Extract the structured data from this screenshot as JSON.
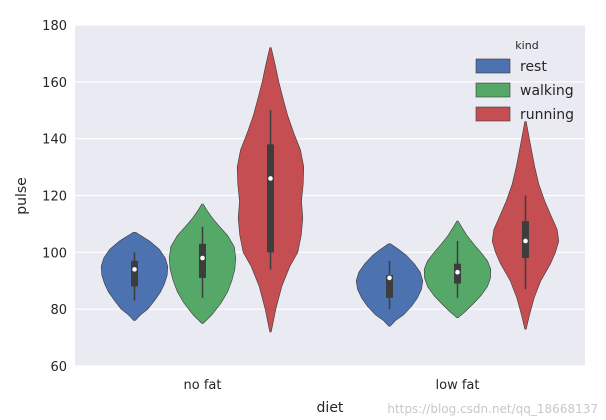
{
  "chart_data": {
    "type": "violin",
    "xlabel": "diet",
    "ylabel": "pulse",
    "ylim": [
      60,
      180
    ],
    "yticks": [
      60,
      80,
      100,
      120,
      140,
      160,
      180
    ],
    "categories": [
      "no fat",
      "low fat"
    ],
    "grid": true,
    "legend": {
      "title": "kind",
      "placement": "top-right"
    },
    "series": [
      {
        "name": "rest",
        "color": "#4c72b0",
        "groups": [
          {
            "category": "no fat",
            "min": 76,
            "max": 107,
            "q1": 88,
            "median": 94,
            "q3": 97,
            "whisker_low": 83,
            "whisker_high": 100,
            "density": [
              [
                76,
                0.02
              ],
              [
                78,
                0.18
              ],
              [
                80,
                0.4
              ],
              [
                83,
                0.6
              ],
              [
                86,
                0.78
              ],
              [
                89,
                0.9
              ],
              [
                92,
                0.98
              ],
              [
                95,
                1.0
              ],
              [
                98,
                0.92
              ],
              [
                101,
                0.75
              ],
              [
                104,
                0.45
              ],
              [
                107,
                0.04
              ]
            ]
          },
          {
            "category": "low fat",
            "min": 74,
            "max": 103,
            "q1": 84,
            "median": 91,
            "q3": 92,
            "whisker_low": 80,
            "whisker_high": 97,
            "density": [
              [
                74,
                0.02
              ],
              [
                76,
                0.18
              ],
              [
                78,
                0.42
              ],
              [
                81,
                0.66
              ],
              [
                84,
                0.84
              ],
              [
                87,
                0.96
              ],
              [
                90,
                1.0
              ],
              [
                93,
                0.92
              ],
              [
                96,
                0.74
              ],
              [
                99,
                0.5
              ],
              [
                101,
                0.28
              ],
              [
                103,
                0.03
              ]
            ]
          }
        ]
      },
      {
        "name": "walking",
        "color": "#55a868",
        "groups": [
          {
            "category": "no fat",
            "min": 75,
            "max": 117,
            "q1": 91,
            "median": 98,
            "q3": 103,
            "whisker_low": 84,
            "whisker_high": 109,
            "density": [
              [
                75,
                0.02
              ],
              [
                78,
                0.28
              ],
              [
                82,
                0.55
              ],
              [
                86,
                0.75
              ],
              [
                90,
                0.88
              ],
              [
                94,
                0.97
              ],
              [
                98,
                1.0
              ],
              [
                102,
                0.95
              ],
              [
                106,
                0.75
              ],
              [
                109,
                0.52
              ],
              [
                112,
                0.3
              ],
              [
                115,
                0.12
              ],
              [
                117,
                0.02
              ]
            ]
          },
          {
            "category": "low fat",
            "min": 77,
            "max": 111,
            "q1": 89,
            "median": 93,
            "q3": 96,
            "whisker_low": 84,
            "whisker_high": 104,
            "density": [
              [
                77,
                0.02
              ],
              [
                79,
                0.22
              ],
              [
                82,
                0.48
              ],
              [
                85,
                0.72
              ],
              [
                88,
                0.9
              ],
              [
                91,
                0.99
              ],
              [
                94,
                1.0
              ],
              [
                97,
                0.9
              ],
              [
                100,
                0.7
              ],
              [
                103,
                0.48
              ],
              [
                106,
                0.28
              ],
              [
                109,
                0.12
              ],
              [
                111,
                0.02
              ]
            ]
          }
        ]
      },
      {
        "name": "running",
        "color": "#c44e52",
        "groups": [
          {
            "category": "no fat",
            "min": 72,
            "max": 172,
            "q1": 100,
            "median": 126,
            "q3": 138,
            "whisker_low": 94,
            "whisker_high": 150,
            "density": [
              [
                72,
                0.02
              ],
              [
                80,
                0.16
              ],
              [
                88,
                0.34
              ],
              [
                95,
                0.58
              ],
              [
                100,
                0.82
              ],
              [
                106,
                0.92
              ],
              [
                112,
                0.97
              ],
              [
                118,
                0.93
              ],
              [
                124,
                0.98
              ],
              [
                130,
                1.0
              ],
              [
                136,
                0.9
              ],
              [
                142,
                0.7
              ],
              [
                148,
                0.52
              ],
              [
                154,
                0.38
              ],
              [
                160,
                0.25
              ],
              [
                166,
                0.14
              ],
              [
                172,
                0.02
              ]
            ]
          },
          {
            "category": "low fat",
            "min": 73,
            "max": 146,
            "q1": 98,
            "median": 104,
            "q3": 111,
            "whisker_low": 87,
            "whisker_high": 120,
            "density": [
              [
                73,
                0.02
              ],
              [
                78,
                0.12
              ],
              [
                84,
                0.26
              ],
              [
                90,
                0.46
              ],
              [
                96,
                0.75
              ],
              [
                100,
                0.9
              ],
              [
                104,
                1.0
              ],
              [
                108,
                0.95
              ],
              [
                112,
                0.8
              ],
              [
                118,
                0.58
              ],
              [
                124,
                0.4
              ],
              [
                130,
                0.28
              ],
              [
                136,
                0.18
              ],
              [
                141,
                0.1
              ],
              [
                146,
                0.02
              ]
            ]
          }
        ]
      }
    ]
  },
  "watermark": "https://blog.csdn.net/qq_18668137"
}
